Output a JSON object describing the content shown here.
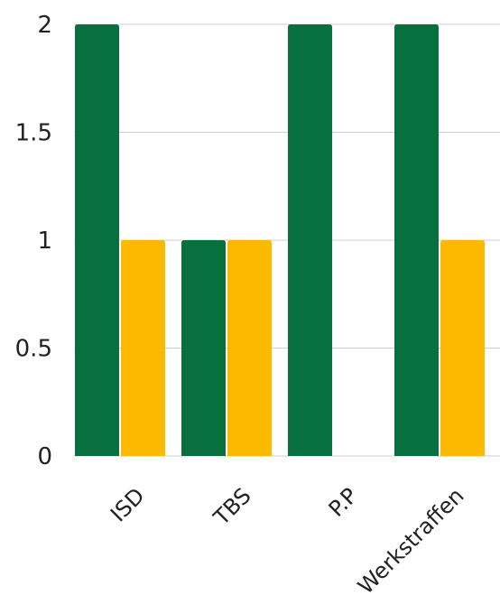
{
  "chart_data": {
    "type": "bar",
    "categories": [
      "ISD",
      "TBS",
      "P.P",
      "Werkstraffen"
    ],
    "series": [
      {
        "color": "#08703f",
        "values": [
          2,
          1,
          2,
          2
        ]
      },
      {
        "color": "#fbb900",
        "values": [
          1,
          1,
          0,
          1
        ]
      }
    ],
    "y_ticks": [
      "0",
      "0.5",
      "1",
      "1.5",
      "2"
    ],
    "y_tick_values": [
      0,
      0.5,
      1,
      1.5,
      2
    ],
    "ylim": [
      0,
      2
    ],
    "grid": true,
    "legend": "none"
  }
}
